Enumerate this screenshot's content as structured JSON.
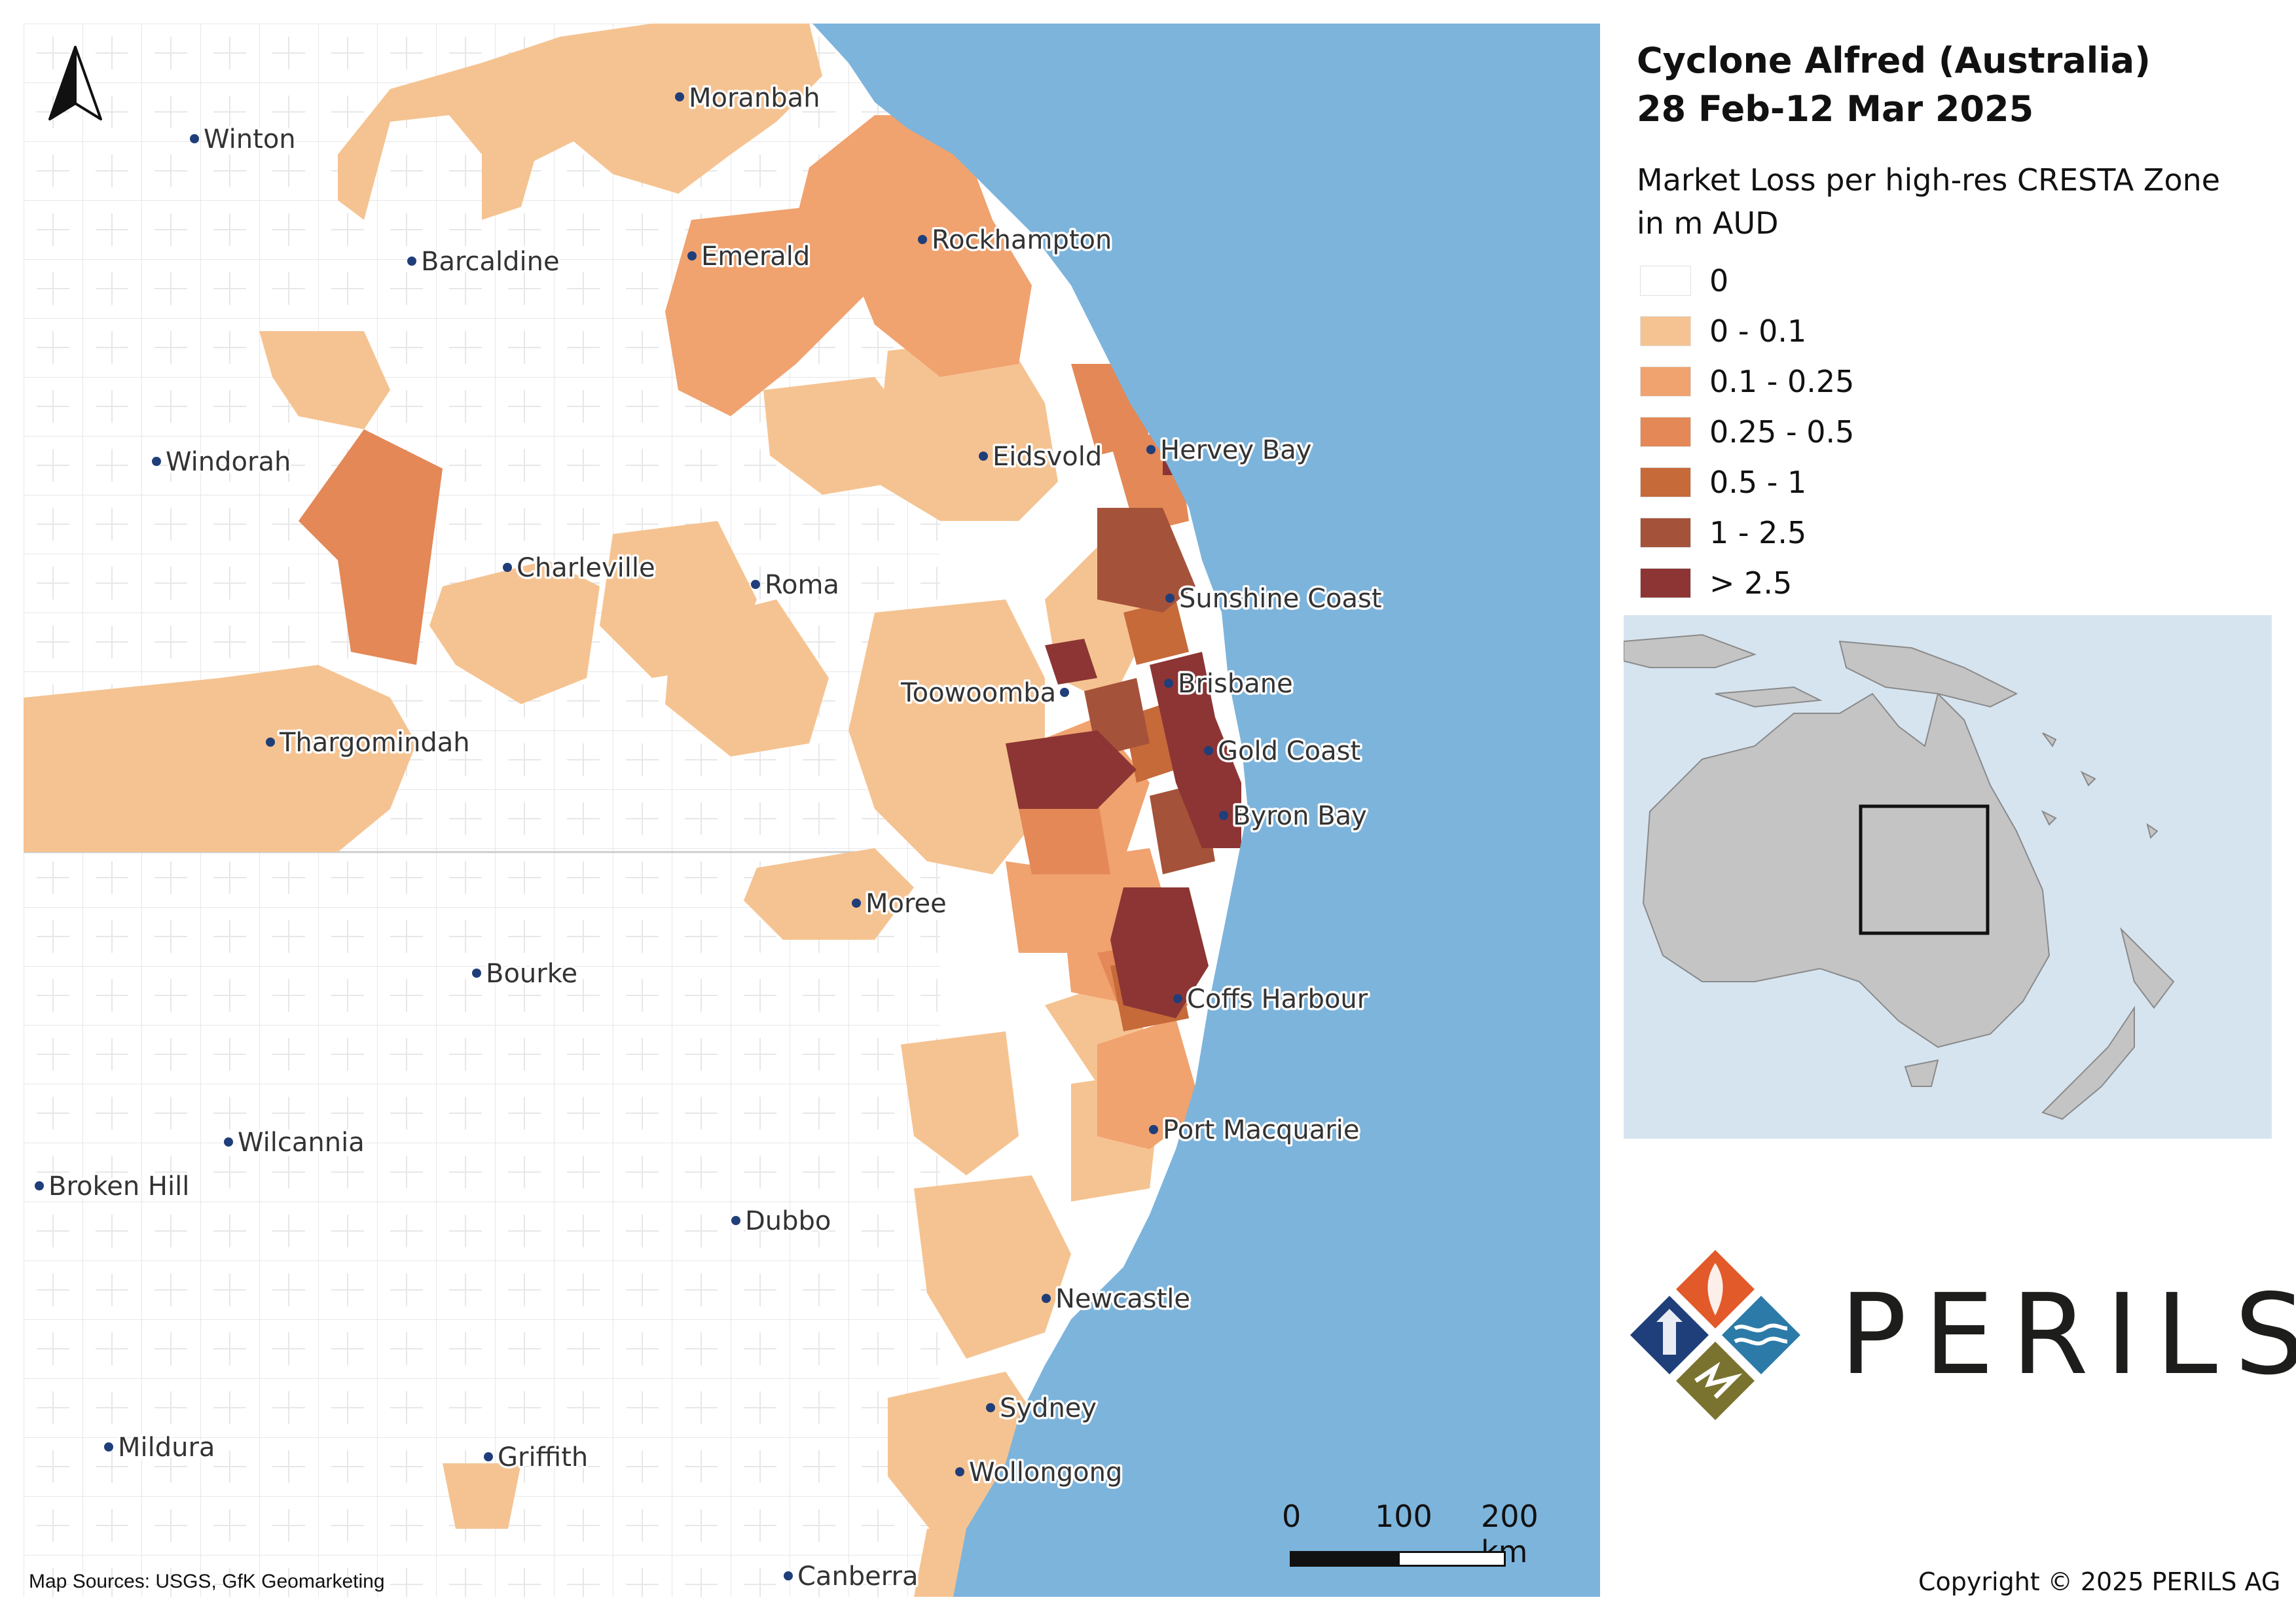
{
  "title_line1": "Cyclone Alfred (Australia)",
  "title_line2": "28 Feb-12 Mar 2025",
  "legend": {
    "title_line1": "Market Loss per high-res CRESTA Zone",
    "title_line2": "in m AUD",
    "classes": [
      {
        "label": "0",
        "color": "#ffffff"
      },
      {
        "label": "0 - 0.1",
        "color": "#f5c391"
      },
      {
        "label": "0.1 - 0.25",
        "color": "#f0a26f"
      },
      {
        "label": "0.25 - 0.5",
        "color": "#e38856"
      },
      {
        "label": "0.5 - 1",
        "color": "#c66a3a"
      },
      {
        "label": "1 - 2.5",
        "color": "#a5523a"
      },
      {
        "label": "> 2.5",
        "color": "#8c3534"
      }
    ]
  },
  "colors": {
    "ocean": "#7db4dc",
    "inset_ocean": "#d6e4f0",
    "inset_land": "#c4c4c4",
    "city_dot": "#1f3e7a",
    "boundary": "#cfcfcf"
  },
  "cities": {
    "moranbah": "Moranbah",
    "winton": "Winton",
    "barcaldine": "Barcaldine",
    "emerald": "Emerald",
    "rockhampton": "Rockhampton",
    "windorah": "Windorah",
    "eidsvold": "Eidsvold",
    "hervey_bay": "Hervey Bay",
    "charleville": "Charleville",
    "roma": "Roma",
    "sunshine_coast": "Sunshine Coast",
    "toowoomba": "Toowoomba",
    "brisbane": "Brisbane",
    "thargomindah": "Thargomindah",
    "gold_coast": "Gold Coast",
    "byron_bay": "Byron Bay",
    "moree": "Moree",
    "bourke": "Bourke",
    "coffs_harbour": "Coffs Harbour",
    "port_macquarie": "Port Macquarie",
    "wilcannia": "Wilcannia",
    "broken_hill": "Broken Hill",
    "dubbo": "Dubbo",
    "newcastle": "Newcastle",
    "sydney": "Sydney",
    "mildura": "Mildura",
    "griffith": "Griffith",
    "wollongong": "Wollongong",
    "canberra": "Canberra"
  },
  "scale": {
    "label_0": "0",
    "label_100": "100",
    "label_200": "200 km"
  },
  "north_arrow_icon": "north-arrow-icon",
  "map_sources": "Map Sources: USGS, GfK Geomarketing",
  "logo": {
    "text": "PERILS",
    "icon": "perils-logo-icon"
  },
  "copyright": "Copyright © 2025 PERILS AG"
}
